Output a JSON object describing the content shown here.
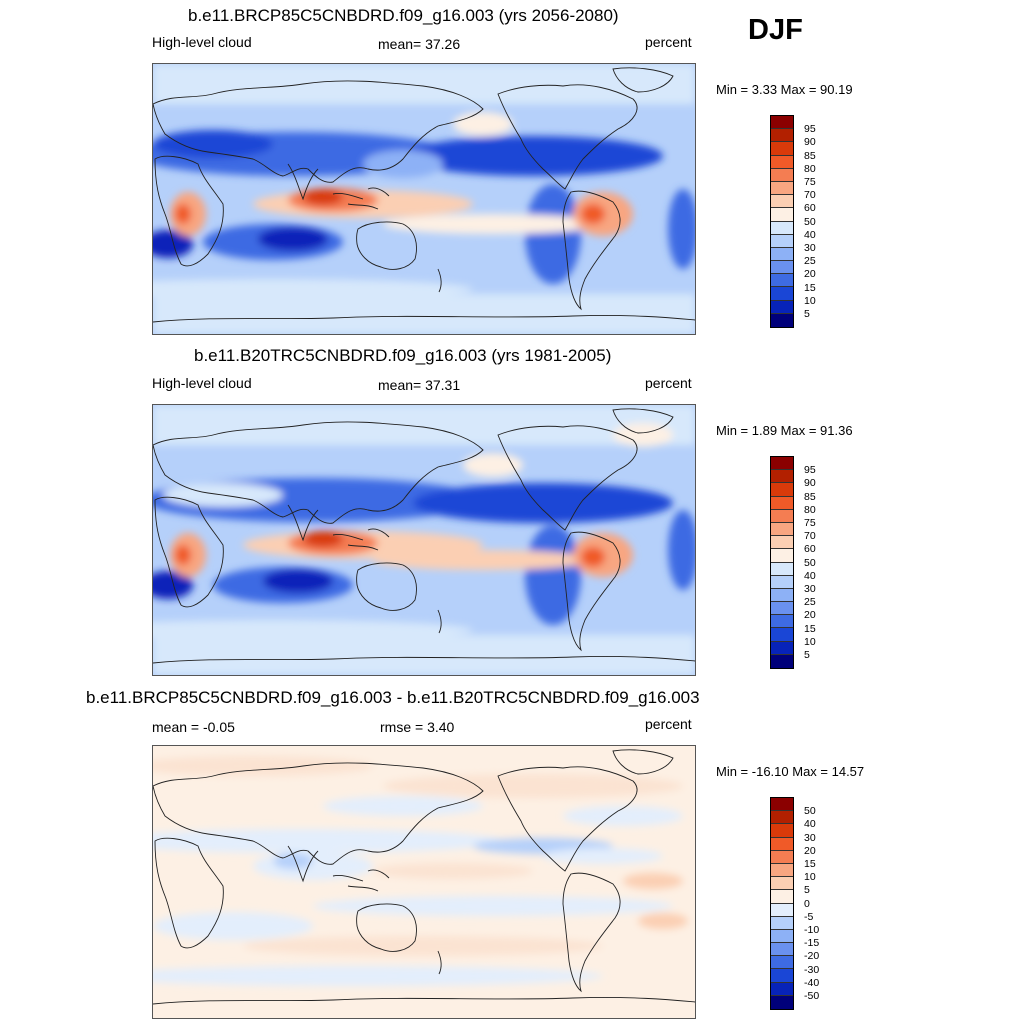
{
  "season": "DJF",
  "panels": [
    {
      "title": "b.e11.BRCP85C5CNBDRD.f09_g16.003 (yrs 2056-2080)",
      "left_label": "High-level cloud",
      "center_label": "mean=  37.26",
      "units": "percent",
      "stats": "Min =   3.33 Max =  90.19",
      "colorbar": {
        "levels": [
          "95",
          "90",
          "85",
          "80",
          "75",
          "70",
          "60",
          "50",
          "40",
          "30",
          "25",
          "20",
          "15",
          "10",
          "5"
        ],
        "colors": [
          "#8b0000",
          "#b22000",
          "#d93a0a",
          "#f05a28",
          "#f47d52",
          "#f8a681",
          "#fbcfb3",
          "#fdf0e4",
          "#d7e8fb",
          "#b5d0fa",
          "#8db1f6",
          "#6a91ef",
          "#3e6be3",
          "#1a46d6",
          "#0723b9",
          "#00007a"
        ]
      }
    },
    {
      "title": "b.e11.B20TRC5CNBDRD.f09_g16.003 (yrs 1981-2005)",
      "left_label": "High-level cloud",
      "center_label": "mean=  37.31",
      "units": "percent",
      "stats": "Min =   1.89 Max =  91.36",
      "colorbar": {
        "levels": [
          "95",
          "90",
          "85",
          "80",
          "75",
          "70",
          "60",
          "50",
          "40",
          "30",
          "25",
          "20",
          "15",
          "10",
          "5"
        ],
        "colors": [
          "#8b0000",
          "#b22000",
          "#d93a0a",
          "#f05a28",
          "#f47d52",
          "#f8a681",
          "#fbcfb3",
          "#fdf0e4",
          "#d7e8fb",
          "#b5d0fa",
          "#8db1f6",
          "#6a91ef",
          "#3e6be3",
          "#1a46d6",
          "#0723b9",
          "#00007a"
        ]
      }
    },
    {
      "title": "b.e11.BRCP85C5CNBDRD.f09_g16.003 - b.e11.B20TRC5CNBDRD.f09_g16.003",
      "left_label": "mean =  -0.05",
      "center_label": "rmse =   3.40",
      "units": "percent",
      "stats": "Min = -16.10 Max =  14.57",
      "colorbar": {
        "levels": [
          "50",
          "40",
          "30",
          "20",
          "15",
          "10",
          "5",
          "0",
          "-5",
          "-10",
          "-15",
          "-20",
          "-30",
          "-40",
          "-50"
        ],
        "colors": [
          "#8b0000",
          "#b22000",
          "#d93a0a",
          "#f05a28",
          "#f47d52",
          "#f8a681",
          "#fbcfb3",
          "#fdf0e4",
          "#e3eefc",
          "#b5d0fa",
          "#8db1f6",
          "#6a91ef",
          "#3e6be3",
          "#1a46d6",
          "#0723b9",
          "#00007a"
        ]
      }
    }
  ]
}
